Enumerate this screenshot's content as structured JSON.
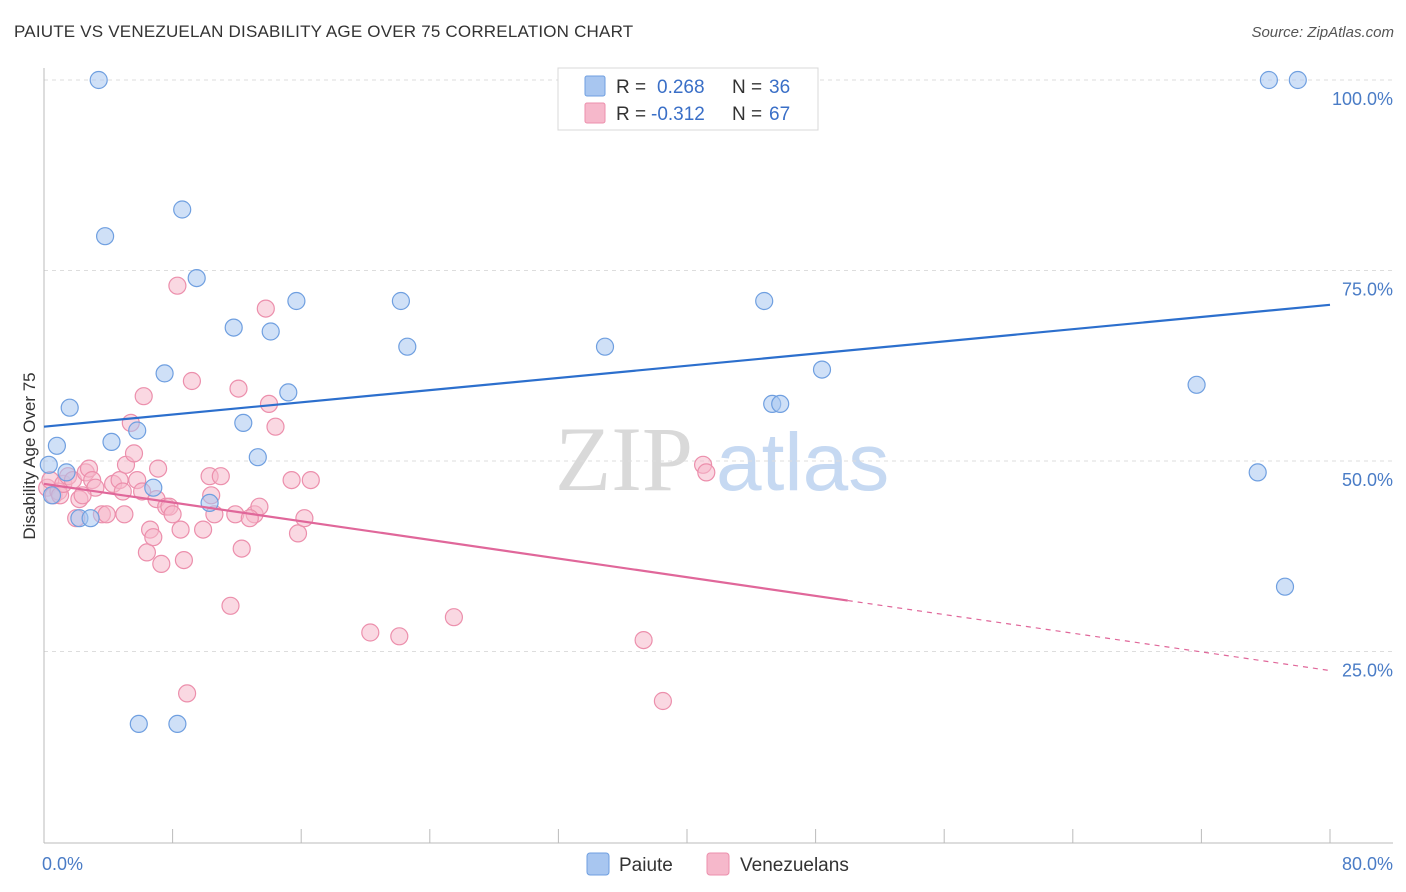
{
  "title": "PAIUTE VS VENEZUELAN DISABILITY AGE OVER 75 CORRELATION CHART",
  "source": "Source: ZipAtlas.com",
  "watermark": {
    "part1": "ZIP",
    "part2": "atlas"
  },
  "colors": {
    "paiute_fill": "#a8c6f0",
    "paiute_stroke": "#6f9fe0",
    "paiute_line": "#2c6fcd",
    "venezuelan_fill": "#f6b8cb",
    "venezuelan_stroke": "#ec8fac",
    "venezuelan_line": "#e0679a",
    "grid": "#dddddd",
    "axis_text": "#4a7cc6"
  },
  "legend": {
    "rows": [
      {
        "r_label": "R =",
        "r_value": "0.268",
        "n_label": "N =",
        "n_value": "36",
        "series": "paiute"
      },
      {
        "r_label": "R =",
        "r_value": "-0.312",
        "n_label": "N =",
        "n_value": "67",
        "series": "venezuelan"
      }
    ]
  },
  "bottom_legend": {
    "paiute": "Paiute",
    "venezuelan": "Venezuelans"
  },
  "chart_data": {
    "type": "scatter",
    "title": "PAIUTE VS VENEZUELAN DISABILITY AGE OVER 75 CORRELATION CHART",
    "xlabel": "",
    "ylabel": "Disability Age Over 75",
    "xlim": [
      0,
      80
    ],
    "ylim": [
      0,
      102
    ],
    "x_tick_labels": [
      "0.0%",
      "80.0%"
    ],
    "y_ticks": [
      25,
      50,
      75,
      100
    ],
    "y_tick_labels": [
      "25.0%",
      "50.0%",
      "75.0%",
      "100.0%"
    ],
    "grid": true,
    "series": [
      {
        "name": "Paiute",
        "r": 0.268,
        "n": 36,
        "trend": {
          "x0": 0,
          "y0": 54.5,
          "x1": 80,
          "y1": 70.5,
          "solid_until": 80
        },
        "points": [
          [
            0.3,
            49.5
          ],
          [
            0.8,
            52
          ],
          [
            1.4,
            48.5
          ],
          [
            1.6,
            57
          ],
          [
            2.2,
            42.5
          ],
          [
            2.9,
            42.5
          ],
          [
            3.4,
            100
          ],
          [
            3.8,
            79.5
          ],
          [
            4.2,
            52.5
          ],
          [
            5.8,
            54
          ],
          [
            5.9,
            15.5
          ],
          [
            6.8,
            46.5
          ],
          [
            7.5,
            61.5
          ],
          [
            8.3,
            15.5
          ],
          [
            8.6,
            83
          ],
          [
            9.5,
            74
          ],
          [
            10.3,
            44.5
          ],
          [
            11.8,
            67.5
          ],
          [
            12.4,
            55
          ],
          [
            13.3,
            50.5
          ],
          [
            14.1,
            67
          ],
          [
            15.2,
            59
          ],
          [
            15.7,
            71
          ],
          [
            22.2,
            71
          ],
          [
            22.6,
            65
          ],
          [
            34.9,
            65
          ],
          [
            44.8,
            71
          ],
          [
            45.3,
            57.5
          ],
          [
            45.8,
            57.5
          ],
          [
            48.4,
            62
          ],
          [
            71.7,
            60
          ],
          [
            75.5,
            48.5
          ],
          [
            77.2,
            33.5
          ],
          [
            76.2,
            100
          ],
          [
            78.0,
            100
          ],
          [
            0.5,
            45.5
          ]
        ]
      },
      {
        "name": "Venezuelans",
        "r": -0.312,
        "n": 67,
        "trend": {
          "x0": 0,
          "y0": 47,
          "x1": 80,
          "y1": 22.5,
          "solid_until": 50
        },
        "points": [
          [
            0.2,
            46.5
          ],
          [
            0.4,
            47.5
          ],
          [
            0.6,
            45.5
          ],
          [
            0.9,
            46
          ],
          [
            1.0,
            45.5
          ],
          [
            1.2,
            47
          ],
          [
            1.5,
            48
          ],
          [
            1.8,
            47.5
          ],
          [
            2.0,
            42.5
          ],
          [
            2.2,
            45
          ],
          [
            2.6,
            48.5
          ],
          [
            2.8,
            49
          ],
          [
            3.0,
            47.5
          ],
          [
            3.2,
            46.5
          ],
          [
            3.6,
            43
          ],
          [
            3.9,
            43
          ],
          [
            4.3,
            47
          ],
          [
            4.7,
            47.5
          ],
          [
            4.9,
            46
          ],
          [
            5.1,
            49.5
          ],
          [
            5.4,
            55
          ],
          [
            5.6,
            51
          ],
          [
            5.8,
            47.5
          ],
          [
            6.1,
            46
          ],
          [
            6.2,
            58.5
          ],
          [
            6.4,
            38
          ],
          [
            6.6,
            41
          ],
          [
            6.8,
            40
          ],
          [
            7.0,
            45
          ],
          [
            7.3,
            36.5
          ],
          [
            7.6,
            44
          ],
          [
            7.8,
            44
          ],
          [
            8.0,
            43
          ],
          [
            8.3,
            73
          ],
          [
            8.5,
            41
          ],
          [
            8.7,
            37
          ],
          [
            8.9,
            19.5
          ],
          [
            9.2,
            60.5
          ],
          [
            10.3,
            48
          ],
          [
            10.4,
            45.5
          ],
          [
            10.6,
            43
          ],
          [
            11.0,
            48
          ],
          [
            11.6,
            31
          ],
          [
            11.9,
            43
          ],
          [
            12.1,
            59.5
          ],
          [
            12.3,
            38.5
          ],
          [
            13.1,
            43
          ],
          [
            13.4,
            44
          ],
          [
            13.8,
            70
          ],
          [
            14.0,
            57.5
          ],
          [
            14.4,
            54.5
          ],
          [
            15.4,
            47.5
          ],
          [
            15.8,
            40.5
          ],
          [
            16.2,
            42.5
          ],
          [
            16.6,
            47.5
          ],
          [
            20.3,
            27.5
          ],
          [
            22.1,
            27
          ],
          [
            25.5,
            29.5
          ],
          [
            37.3,
            26.5
          ],
          [
            41.0,
            49.5
          ],
          [
            41.2,
            48.5
          ],
          [
            38.5,
            18.5
          ],
          [
            2.4,
            45.5
          ],
          [
            5.0,
            43
          ],
          [
            9.9,
            41
          ],
          [
            7.1,
            49
          ],
          [
            12.8,
            42.5
          ]
        ]
      }
    ]
  }
}
